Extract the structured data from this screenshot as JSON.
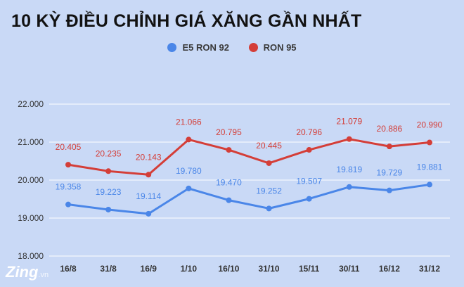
{
  "title": "10 KỲ ĐIỀU CHỈNH GIÁ XĂNG GẦN NHẤT",
  "watermark": {
    "brand": "Zing",
    "suffix": ".vn"
  },
  "colors": {
    "background": "#c9d9f6",
    "e5": "#4a86e8",
    "ron95": "#d43e38",
    "grid": "#ffffff"
  },
  "chart_data": {
    "type": "line",
    "title": "10 KỲ ĐIỀU CHỈNH GIÁ XĂNG GẦN NHẤT",
    "categories": [
      "16/8",
      "31/8",
      "16/9",
      "1/10",
      "16/10",
      "31/10",
      "15/11",
      "30/11",
      "16/12",
      "31/12"
    ],
    "series": [
      {
        "name": "E5 RON 92",
        "color": "#4a86e8",
        "values": [
          19358,
          19223,
          19114,
          19780,
          19470,
          19252,
          19507,
          19819,
          19729,
          19881
        ],
        "labels": [
          "19.358",
          "19.223",
          "19.114",
          "19.780",
          "19.470",
          "19.252",
          "19.507",
          "19.819",
          "19.729",
          "19.881"
        ]
      },
      {
        "name": "RON 95",
        "color": "#d43e38",
        "values": [
          20405,
          20235,
          20143,
          21066,
          20795,
          20445,
          20796,
          21079,
          20886,
          20990
        ],
        "labels": [
          "20.405",
          "20.235",
          "20.143",
          "21.066",
          "20.795",
          "20.445",
          "20.796",
          "21.079",
          "20.886",
          "20.990"
        ]
      }
    ],
    "yticks": [
      18000,
      19000,
      20000,
      21000,
      22000
    ],
    "ytick_labels": [
      "18.000",
      "19.000",
      "20.000",
      "21.000",
      "22.000"
    ],
    "ylim": [
      18000,
      22000
    ],
    "grid": true,
    "legend": "top-center",
    "xlabel": "",
    "ylabel": ""
  }
}
